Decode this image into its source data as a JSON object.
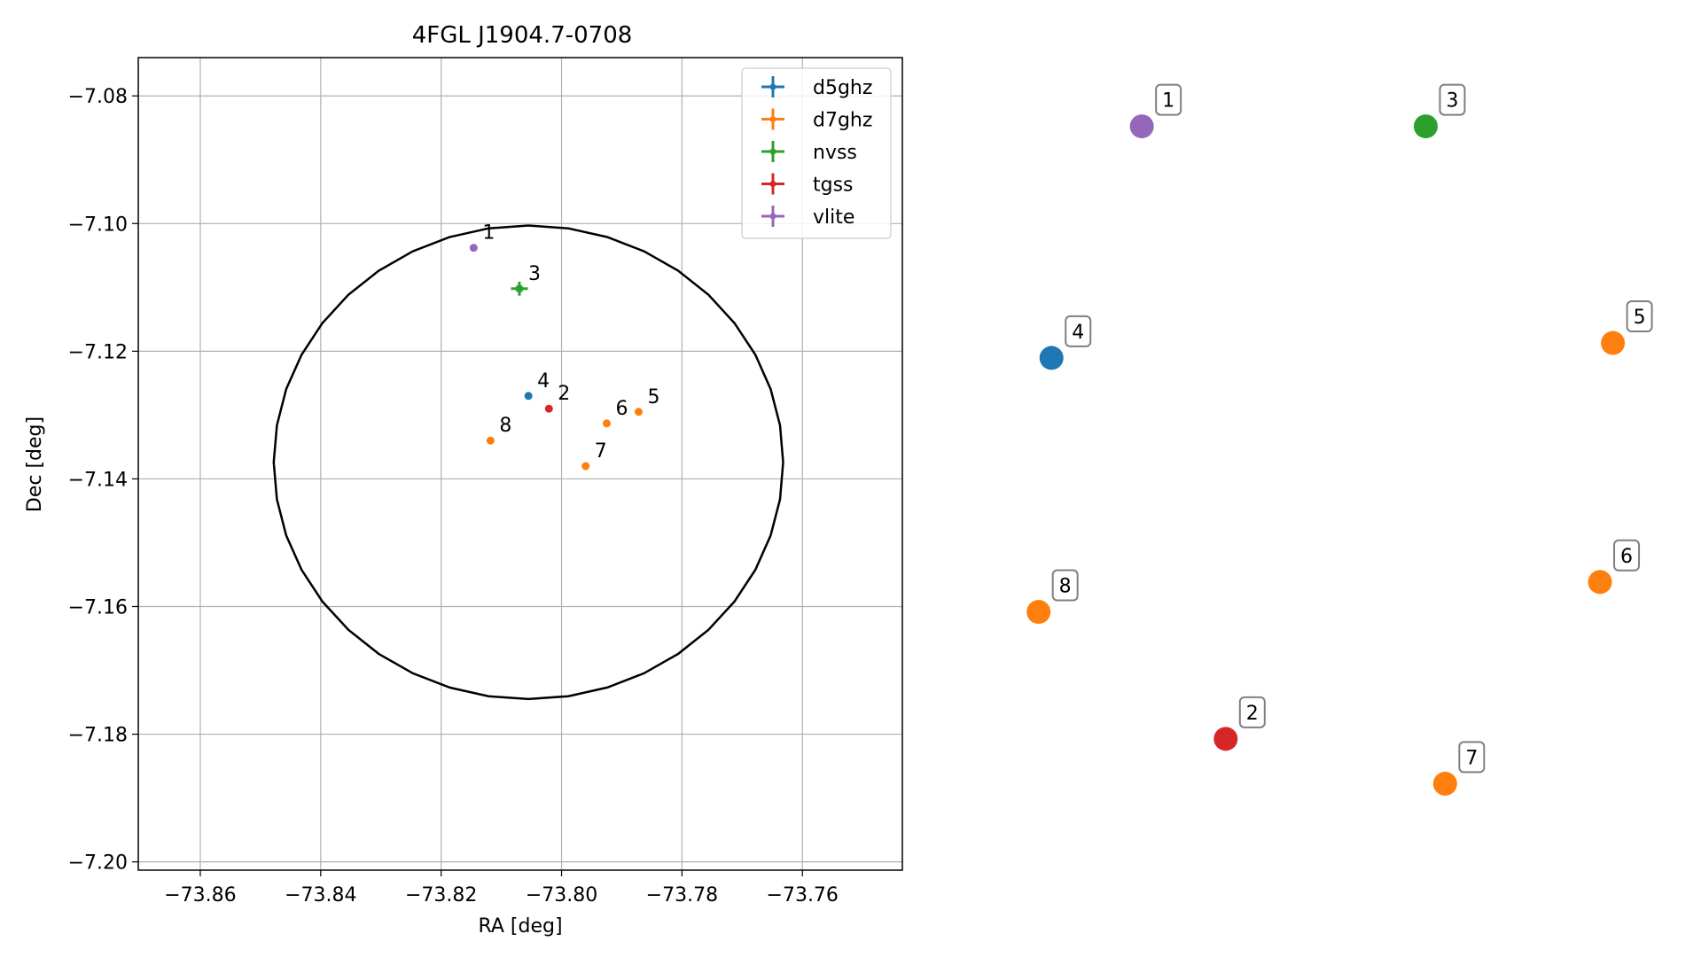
{
  "chart_data": [
    {
      "type": "scatter",
      "title": "4FGL J1904.7-0708",
      "xlabel": "RA [deg]",
      "ylabel": "Dec [deg]",
      "xlim": [
        -73.8703,
        -73.7434
      ],
      "ylim": [
        -7.2013,
        -7.074
      ],
      "xticks": [
        -73.86,
        -73.84,
        -73.82,
        -73.8,
        -73.78,
        -73.76
      ],
      "xtick_labels": [
        "−73.86",
        "−73.84",
        "−73.82",
        "−73.80",
        "−73.78",
        "−73.76"
      ],
      "yticks": [
        -7.08,
        -7.1,
        -7.12,
        -7.14,
        -7.16,
        -7.18,
        -7.2
      ],
      "ytick_labels": [
        "−7.08",
        "−7.10",
        "−7.12",
        "−7.14",
        "−7.16",
        "−7.18",
        "−7.20"
      ],
      "grid": true,
      "legend_position": "top-right",
      "ellipse": {
        "center": [
          -73.8055,
          -7.1374
        ],
        "semi_axis_ra": 0.0423,
        "semi_axis_dec": 0.0371
      },
      "series": [
        {
          "name": "d5ghz",
          "color": "#1f77b4",
          "points": [
            {
              "label": "4",
              "ra": -73.8055,
              "dec": -7.127
            }
          ]
        },
        {
          "name": "d7ghz",
          "color": "#ff7f0e",
          "points": [
            {
              "label": "5",
              "ra": -73.7872,
              "dec": -7.1295
            },
            {
              "label": "6",
              "ra": -73.7925,
              "dec": -7.1313
            },
            {
              "label": "7",
              "ra": -73.796,
              "dec": -7.138
            },
            {
              "label": "8",
              "ra": -73.8118,
              "dec": -7.134
            }
          ]
        },
        {
          "name": "nvss",
          "color": "#2ca02c",
          "points": [
            {
              "label": "3",
              "ra": -73.807,
              "dec": -7.1102,
              "err_ra": 0.0014,
              "err_dec": 0.0011
            }
          ]
        },
        {
          "name": "tgss",
          "color": "#d62728",
          "points": [
            {
              "label": "2",
              "ra": -73.8021,
              "dec": -7.129
            }
          ]
        },
        {
          "name": "vlite",
          "color": "#9467bd",
          "points": [
            {
              "label": "1",
              "ra": -73.8146,
              "dec": -7.1038
            }
          ]
        }
      ]
    },
    {
      "type": "scatter",
      "points": [
        {
          "label": "1",
          "color": "#9467bd",
          "x": 0.22,
          "y": 0.94
        },
        {
          "label": "3",
          "color": "#2ca02c",
          "x": 0.66,
          "y": 0.94
        },
        {
          "label": "4",
          "color": "#1f77b4",
          "x": 0.08,
          "y": 0.63
        },
        {
          "label": "5",
          "color": "#ff7f0e",
          "x": 0.95,
          "y": 0.65
        },
        {
          "label": "8",
          "color": "#ff7f0e",
          "x": 0.06,
          "y": 0.29
        },
        {
          "label": "6",
          "color": "#ff7f0e",
          "x": 0.93,
          "y": 0.33
        },
        {
          "label": "2",
          "color": "#d62728",
          "x": 0.35,
          "y": 0.12
        },
        {
          "label": "7",
          "color": "#ff7f0e",
          "x": 0.69,
          "y": 0.06
        }
      ]
    }
  ]
}
